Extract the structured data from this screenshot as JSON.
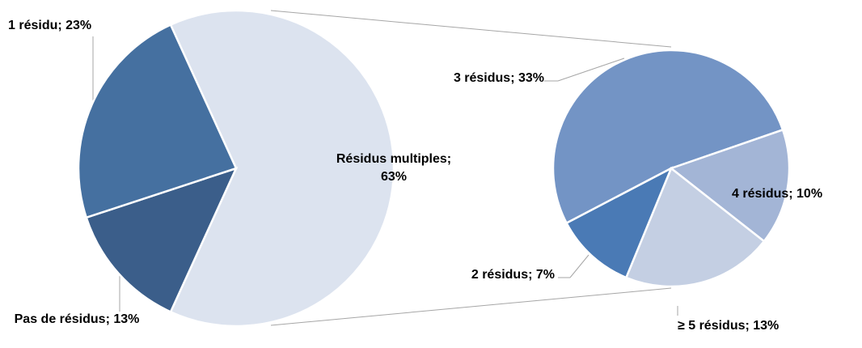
{
  "chart_data": [
    {
      "type": "pie",
      "labels": [
        "Résidus multiples; 63%",
        "Pas de résidus; 13%",
        "1 résidu; 23%"
      ],
      "values": [
        63,
        13,
        23
      ],
      "colors": [
        "#dce3ef",
        "#3b5e8a",
        "#4570a0"
      ]
    },
    {
      "type": "pie",
      "labels": [
        "3 résidus; 33%",
        "4 résidus; 10%",
        "≥ 5 résidus; 13%",
        "2 résidus; 7%"
      ],
      "values": [
        33,
        10,
        13,
        7
      ],
      "colors": [
        "#7394c5",
        "#a3b5d6",
        "#c4cfe3",
        "#4a7ab5"
      ]
    }
  ]
}
